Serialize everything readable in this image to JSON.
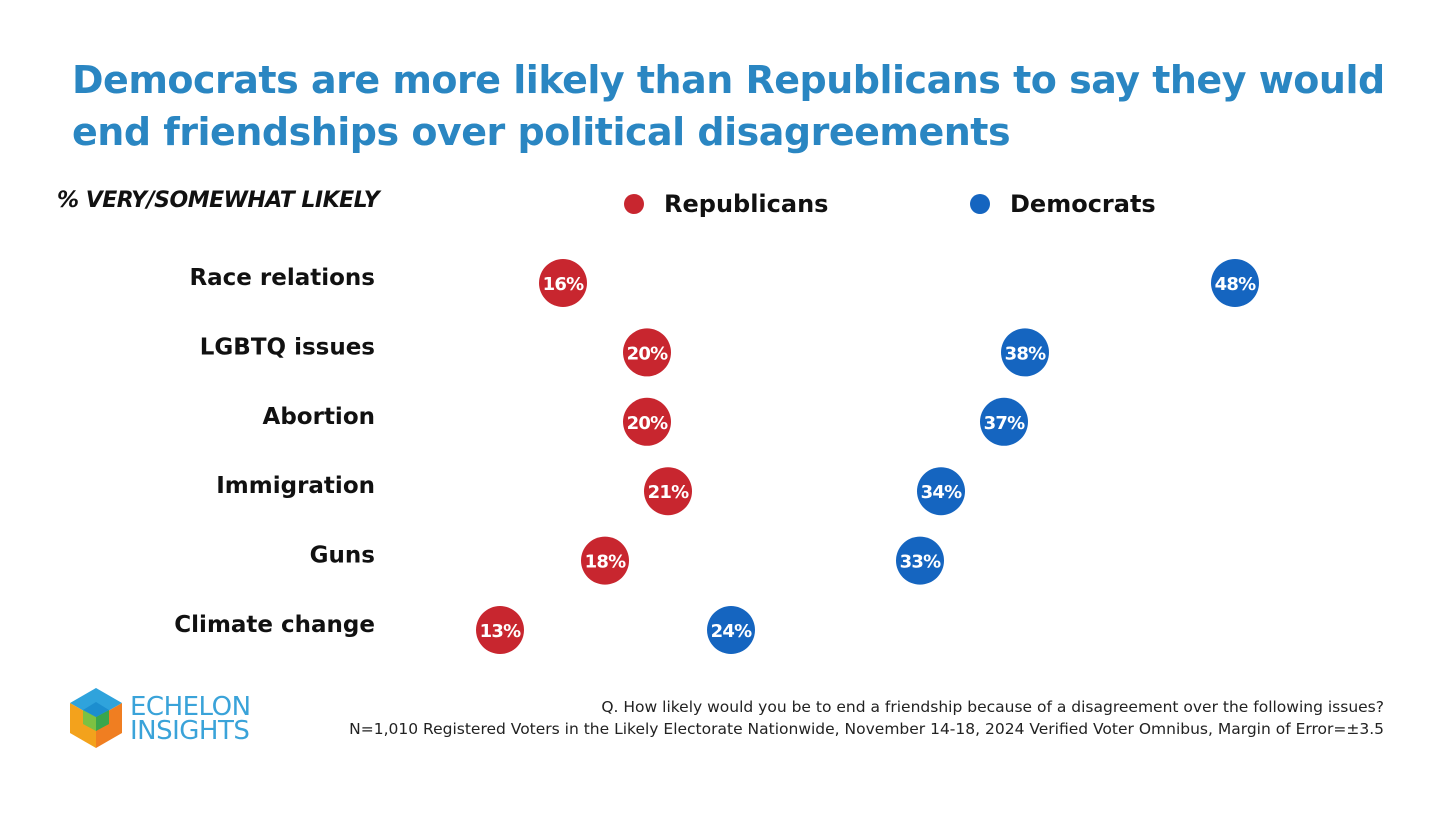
{
  "title": "Democrats are more likely than Republicans to say they would end friendships over political disagreements",
  "chart_data": {
    "type": "scatter",
    "subtitle": "% VERY/SOMEWHAT LIKELY",
    "categories": [
      "Race relations",
      "LGBTQ issues",
      "Abortion",
      "Immigration",
      "Guns",
      "Climate change"
    ],
    "series": [
      {
        "name": "Republicans",
        "color": "#c8262f",
        "values": [
          16,
          20,
          20,
          21,
          18,
          13
        ]
      },
      {
        "name": "Democrats",
        "color": "#1565c0",
        "values": [
          48,
          38,
          37,
          34,
          33,
          24
        ]
      }
    ],
    "value_format": "percent"
  },
  "footnote": {
    "line1": "Q. How likely would you be to end a friendship because of a disagreement over the following issues?",
    "line2": "N=1,010 Registered Voters in the Likely Electorate Nationwide, November 14-18, 2024 Verified Voter Omnibus, Margin of Error=±3.5"
  },
  "logo": {
    "line1": "ECHELON",
    "line2": "INSIGHTS"
  }
}
